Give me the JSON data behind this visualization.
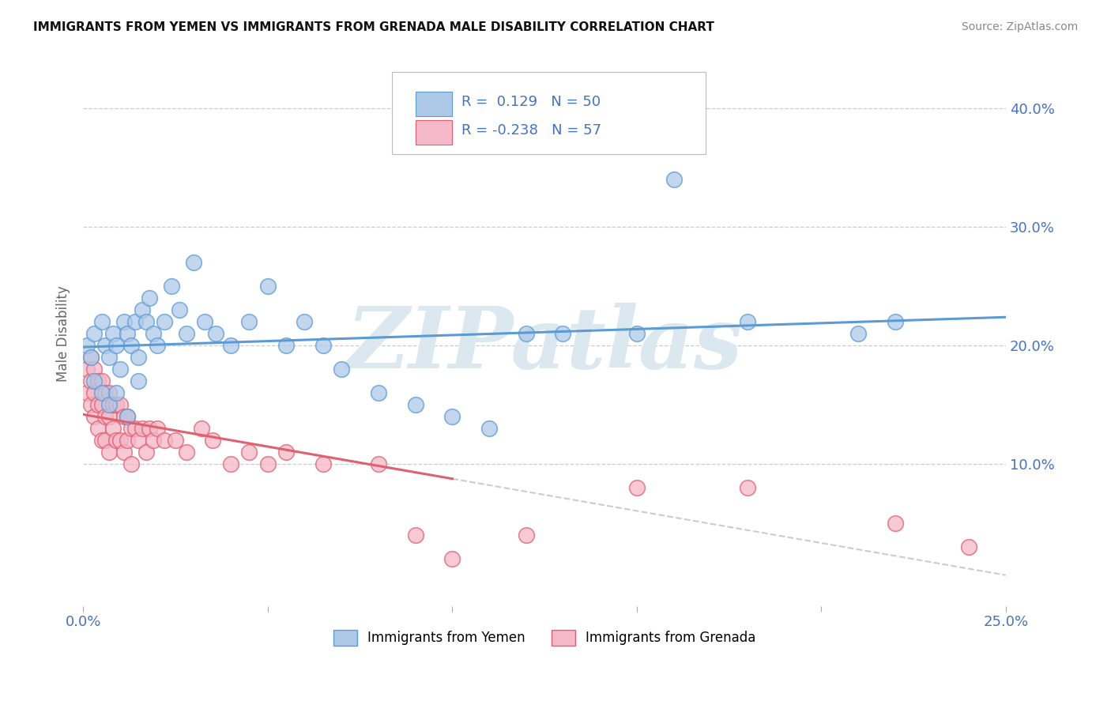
{
  "title": "IMMIGRANTS FROM YEMEN VS IMMIGRANTS FROM GRENADA MALE DISABILITY CORRELATION CHART",
  "source": "Source: ZipAtlas.com",
  "ylabel": "Male Disability",
  "x_min": 0.0,
  "x_max": 0.25,
  "y_min": -0.02,
  "y_max": 0.44,
  "x_ticks": [
    0.0,
    0.05,
    0.1,
    0.15,
    0.2,
    0.25
  ],
  "x_tick_labels": [
    "0.0%",
    "",
    "",
    "",
    "",
    "25.0%"
  ],
  "y_ticks": [
    0.1,
    0.2,
    0.3,
    0.4
  ],
  "y_tick_labels": [
    "10.0%",
    "20.0%",
    "30.0%",
    "40.0%"
  ],
  "legend_labels": [
    "Immigrants from Yemen",
    "Immigrants from Grenada"
  ],
  "R_yemen": 0.129,
  "N_yemen": 50,
  "R_grenada": -0.238,
  "N_grenada": 57,
  "color_yemen": "#aec9e8",
  "color_grenada": "#f4b8c8",
  "color_yemen_line": "#5b9bd5",
  "color_grenada_line": "#e06070",
  "watermark": "ZIPatlas",
  "watermark_color": "#dce8f0",
  "background_color": "#ffffff",
  "yemen_x": [
    0.001,
    0.002,
    0.003,
    0.005,
    0.006,
    0.007,
    0.008,
    0.009,
    0.01,
    0.011,
    0.012,
    0.013,
    0.014,
    0.015,
    0.016,
    0.017,
    0.018,
    0.019,
    0.02,
    0.022,
    0.024,
    0.026,
    0.028,
    0.03,
    0.033,
    0.036,
    0.04,
    0.045,
    0.05,
    0.055,
    0.06,
    0.065,
    0.07,
    0.08,
    0.09,
    0.1,
    0.11,
    0.12,
    0.13,
    0.15,
    0.16,
    0.18,
    0.21,
    0.22,
    0.003,
    0.005,
    0.007,
    0.009,
    0.012,
    0.015
  ],
  "yemen_y": [
    0.2,
    0.19,
    0.21,
    0.22,
    0.2,
    0.19,
    0.21,
    0.2,
    0.18,
    0.22,
    0.21,
    0.2,
    0.22,
    0.19,
    0.23,
    0.22,
    0.24,
    0.21,
    0.2,
    0.22,
    0.25,
    0.23,
    0.21,
    0.27,
    0.22,
    0.21,
    0.2,
    0.22,
    0.25,
    0.2,
    0.22,
    0.2,
    0.18,
    0.16,
    0.15,
    0.14,
    0.13,
    0.21,
    0.21,
    0.21,
    0.34,
    0.22,
    0.21,
    0.22,
    0.17,
    0.16,
    0.15,
    0.16,
    0.14,
    0.17
  ],
  "grenada_x": [
    0.001,
    0.001,
    0.002,
    0.002,
    0.002,
    0.003,
    0.003,
    0.003,
    0.004,
    0.004,
    0.004,
    0.005,
    0.005,
    0.005,
    0.006,
    0.006,
    0.006,
    0.007,
    0.007,
    0.007,
    0.008,
    0.008,
    0.009,
    0.009,
    0.01,
    0.01,
    0.011,
    0.011,
    0.012,
    0.012,
    0.013,
    0.013,
    0.014,
    0.015,
    0.016,
    0.017,
    0.018,
    0.019,
    0.02,
    0.022,
    0.025,
    0.028,
    0.032,
    0.035,
    0.04,
    0.045,
    0.05,
    0.055,
    0.065,
    0.08,
    0.09,
    0.1,
    0.12,
    0.15,
    0.18,
    0.22,
    0.24
  ],
  "grenada_y": [
    0.18,
    0.16,
    0.19,
    0.17,
    0.15,
    0.18,
    0.16,
    0.14,
    0.17,
    0.15,
    0.13,
    0.17,
    0.15,
    0.12,
    0.16,
    0.14,
    0.12,
    0.16,
    0.14,
    0.11,
    0.15,
    0.13,
    0.15,
    0.12,
    0.15,
    0.12,
    0.14,
    0.11,
    0.14,
    0.12,
    0.13,
    0.1,
    0.13,
    0.12,
    0.13,
    0.11,
    0.13,
    0.12,
    0.13,
    0.12,
    0.12,
    0.11,
    0.13,
    0.12,
    0.1,
    0.11,
    0.1,
    0.11,
    0.1,
    0.1,
    0.04,
    0.02,
    0.04,
    0.08,
    0.08,
    0.05,
    0.03
  ]
}
